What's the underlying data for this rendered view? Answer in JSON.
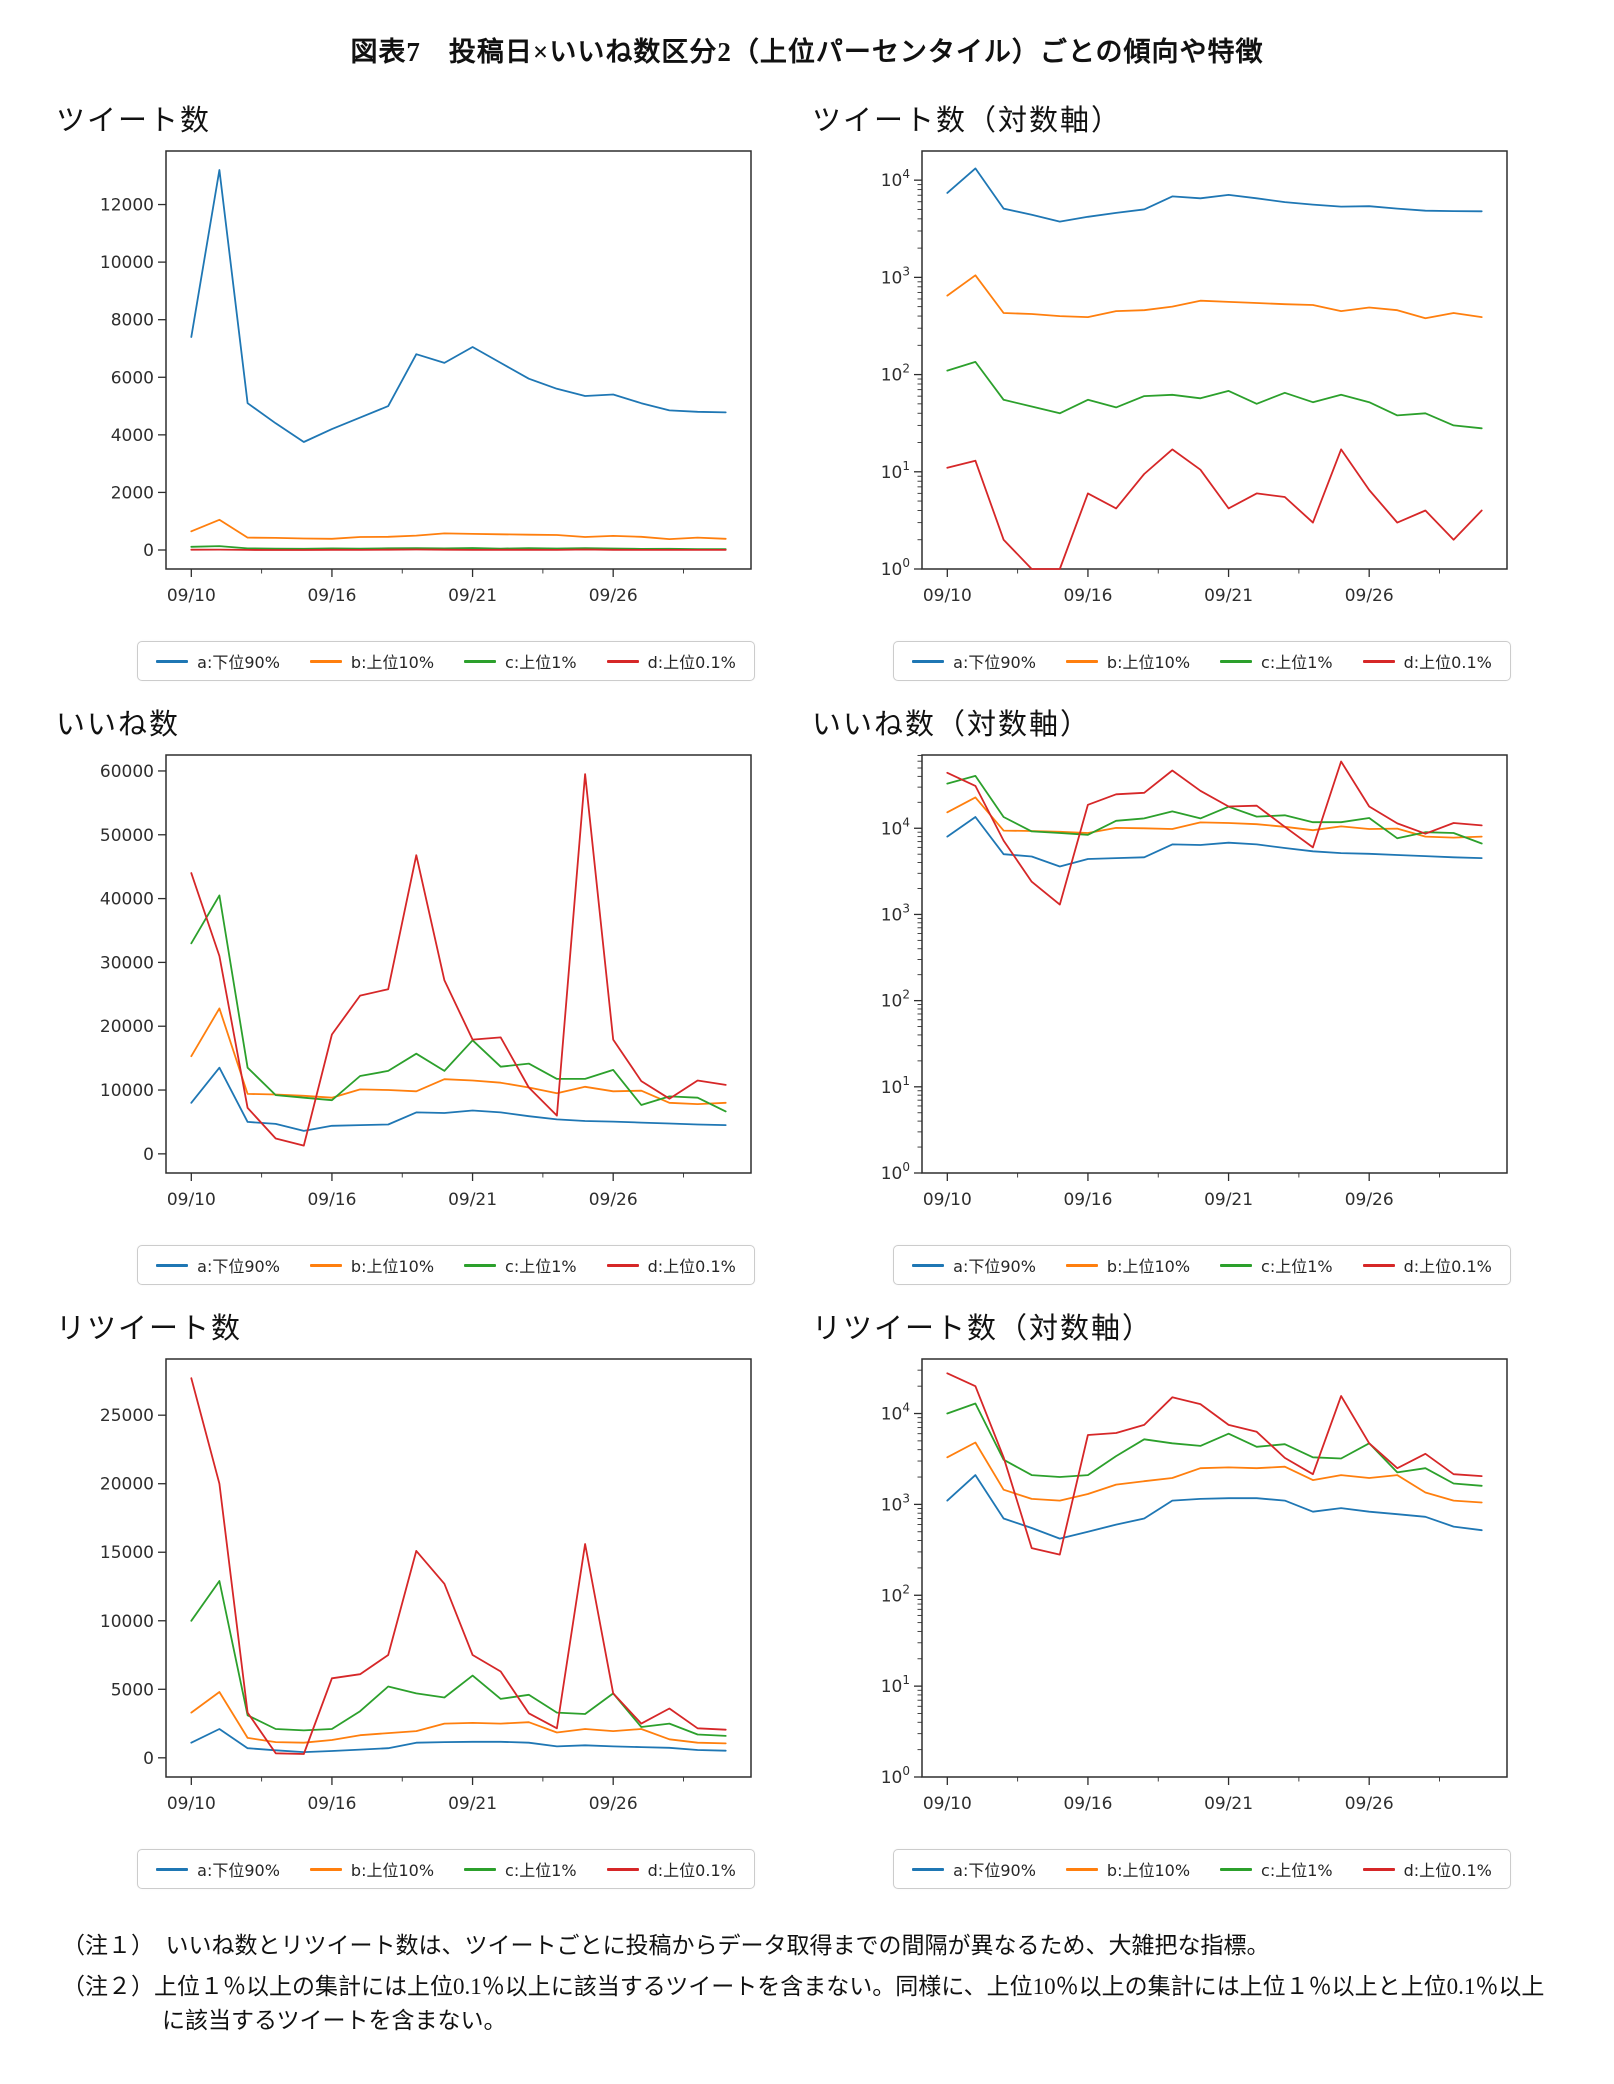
{
  "page": {
    "title": "図表7　投稿日×いいね数区分2（上位パーセンタイル）ごとの傾向や特徴",
    "notes": [
      "（注１）　いいね数とリツイート数は、ツイートごとに投稿からデータ取得までの間隔が異なるため、大雑把な指標。",
      "（注２）上位１％以上の集計には上位0.1％以上に該当するツイートを含まない。同様に、上位10％以上の集計には上位１％以上と上位0.1％以上に該当するツイートを含まない。"
    ]
  },
  "legend": {
    "position": "below",
    "items": [
      {
        "key": "a",
        "label": "a:下位90%",
        "color": "#1f77b4"
      },
      {
        "key": "b",
        "label": "b:上位10%",
        "color": "#ff7f0e"
      },
      {
        "key": "c",
        "label": "c:上位1%",
        "color": "#2ca02c"
      },
      {
        "key": "d",
        "label": "d:上位0.1%",
        "color": "#d62728"
      }
    ]
  },
  "x_axis": {
    "n_points": 20,
    "xlim": [
      -0.9,
      19.9
    ],
    "major_ticks": [
      {
        "index": 0,
        "label": "09/10"
      },
      {
        "index": 5,
        "label": "09/16"
      },
      {
        "index": 10,
        "label": "09/21"
      },
      {
        "index": 15,
        "label": "09/26"
      }
    ],
    "minor_tick_positions": [
      2.5,
      7.5,
      12.5,
      17.5
    ]
  },
  "chart_data": [
    {
      "id": "tweets-linear",
      "title": "ツイート数",
      "type": "line",
      "yscale": "linear",
      "grid": false,
      "ylim": [
        -660,
        13860
      ],
      "yticks": [
        0,
        2000,
        4000,
        6000,
        8000,
        10000,
        12000
      ],
      "series": [
        {
          "name": "a:下位90%",
          "values": [
            7400,
            13200,
            5100,
            4400,
            3750,
            4200,
            4600,
            5000,
            6800,
            6500,
            7050,
            6500,
            5950,
            5600,
            5350,
            5400,
            5100,
            4850,
            4800,
            4780
          ]
        },
        {
          "name": "b:上位10%",
          "values": [
            650,
            1050,
            430,
            420,
            400,
            390,
            450,
            460,
            500,
            575,
            560,
            545,
            530,
            520,
            450,
            490,
            460,
            380,
            430,
            390
          ]
        },
        {
          "name": "c:上位1%",
          "values": [
            110,
            135,
            55,
            47,
            40,
            55,
            46,
            60,
            62,
            57,
            68,
            50,
            65,
            52,
            62,
            52,
            38,
            40,
            30,
            28
          ]
        },
        {
          "name": "d:上位0.1%",
          "values": [
            11,
            13,
            2,
            1,
            1,
            6,
            4.2,
            9.5,
            17,
            10.5,
            4.2,
            6,
            5.5,
            3,
            17,
            6.5,
            3,
            4,
            2,
            4
          ]
        }
      ]
    },
    {
      "id": "tweets-log",
      "title": "ツイート数（対数軸）",
      "type": "line",
      "yscale": "log",
      "grid": false,
      "ylim_exponents": [
        0,
        4.3
      ],
      "ytick_exponents": [
        0,
        1,
        2,
        3,
        4
      ],
      "series": [
        {
          "name": "a:下位90%",
          "values": [
            7400,
            13200,
            5100,
            4400,
            3750,
            4200,
            4600,
            5000,
            6800,
            6500,
            7050,
            6500,
            5950,
            5600,
            5350,
            5400,
            5100,
            4850,
            4800,
            4780
          ]
        },
        {
          "name": "b:上位10%",
          "values": [
            650,
            1050,
            430,
            420,
            400,
            390,
            450,
            460,
            500,
            575,
            560,
            545,
            530,
            520,
            450,
            490,
            460,
            380,
            430,
            390
          ]
        },
        {
          "name": "c:上位1%",
          "values": [
            110,
            135,
            55,
            47,
            40,
            55,
            46,
            60,
            62,
            57,
            68,
            50,
            65,
            52,
            62,
            52,
            38,
            40,
            30,
            28
          ]
        },
        {
          "name": "d:上位0.1%",
          "values": [
            11,
            13,
            2,
            1,
            1,
            6,
            4.2,
            9.5,
            17,
            10.5,
            4.2,
            6,
            5.5,
            3,
            17,
            6.5,
            3,
            4,
            2,
            4
          ]
        }
      ]
    },
    {
      "id": "likes-linear",
      "title": "いいね数",
      "type": "line",
      "yscale": "linear",
      "grid": false,
      "ylim": [
        -3000,
        62500
      ],
      "yticks": [
        0,
        10000,
        20000,
        30000,
        40000,
        50000,
        60000
      ],
      "series": [
        {
          "name": "a:下位90%",
          "values": [
            8000,
            13500,
            5000,
            4700,
            3600,
            4400,
            4500,
            4600,
            6500,
            6400,
            6800,
            6500,
            5900,
            5400,
            5150,
            5050,
            4900,
            4750,
            4600,
            4500
          ]
        },
        {
          "name": "b:上位10%",
          "values": [
            15300,
            22800,
            9400,
            9300,
            9100,
            8800,
            10100,
            10000,
            9800,
            11700,
            11500,
            11150,
            10400,
            9500,
            10500,
            9800,
            9900,
            8000,
            7800,
            8000
          ]
        },
        {
          "name": "c:上位1%",
          "values": [
            33000,
            40500,
            13500,
            9200,
            8800,
            8400,
            12200,
            13000,
            15700,
            13000,
            17800,
            13650,
            14150,
            11750,
            11750,
            13150,
            7650,
            9000,
            8800,
            6650
          ]
        },
        {
          "name": "d:上位0.1%",
          "values": [
            44000,
            31000,
            7200,
            2400,
            1300,
            18700,
            24800,
            25800,
            46800,
            27200,
            17900,
            18250,
            10400,
            6000,
            59500,
            17900,
            11400,
            8650,
            11500,
            10800
          ]
        }
      ]
    },
    {
      "id": "likes-log",
      "title": "いいね数（対数軸）",
      "type": "line",
      "yscale": "log",
      "grid": false,
      "ylim_exponents": [
        0,
        4.85
      ],
      "ytick_exponents": [
        0,
        1,
        2,
        3,
        4
      ],
      "series": [
        {
          "name": "a:下位90%",
          "values": [
            8000,
            13500,
            5000,
            4700,
            3600,
            4400,
            4500,
            4600,
            6500,
            6400,
            6800,
            6500,
            5900,
            5400,
            5150,
            5050,
            4900,
            4750,
            4600,
            4500
          ]
        },
        {
          "name": "b:上位10%",
          "values": [
            15300,
            22800,
            9400,
            9300,
            9100,
            8800,
            10100,
            10000,
            9800,
            11700,
            11500,
            11150,
            10400,
            9500,
            10500,
            9800,
            9900,
            8000,
            7800,
            8000
          ]
        },
        {
          "name": "c:上位1%",
          "values": [
            33000,
            40500,
            13500,
            9200,
            8800,
            8400,
            12200,
            13000,
            15700,
            13000,
            17800,
            13650,
            14150,
            11750,
            11750,
            13150,
            7650,
            9000,
            8800,
            6650
          ]
        },
        {
          "name": "d:上位0.1%",
          "values": [
            44000,
            31000,
            7200,
            2400,
            1300,
            18700,
            24800,
            25800,
            46800,
            27200,
            17900,
            18250,
            10400,
            6000,
            59500,
            17900,
            11400,
            8650,
            11500,
            10800
          ]
        }
      ]
    },
    {
      "id": "retweets-linear",
      "title": "リツイート数",
      "type": "line",
      "yscale": "linear",
      "grid": false,
      "ylim": [
        -1400,
        29100
      ],
      "yticks": [
        0,
        5000,
        10000,
        15000,
        20000,
        25000
      ],
      "series": [
        {
          "name": "a:下位90%",
          "values": [
            1100,
            2100,
            700,
            550,
            420,
            500,
            600,
            700,
            1100,
            1150,
            1170,
            1170,
            1100,
            830,
            910,
            830,
            780,
            730,
            570,
            520
          ]
        },
        {
          "name": "b:上位10%",
          "values": [
            3300,
            4800,
            1450,
            1150,
            1100,
            1300,
            1650,
            1800,
            1950,
            2500,
            2550,
            2500,
            2600,
            1850,
            2100,
            1950,
            2100,
            1350,
            1100,
            1050
          ]
        },
        {
          "name": "c:上位1%",
          "values": [
            10000,
            12900,
            3100,
            2100,
            2000,
            2100,
            3400,
            5200,
            4700,
            4400,
            6000,
            4300,
            4600,
            3300,
            3200,
            4700,
            2250,
            2500,
            1700,
            1600
          ]
        },
        {
          "name": "d:上位0.1%",
          "values": [
            27700,
            20000,
            3300,
            330,
            280,
            5800,
            6100,
            7500,
            15100,
            12700,
            7500,
            6300,
            3250,
            2150,
            15600,
            4700,
            2500,
            3600,
            2150,
            2050
          ]
        }
      ]
    },
    {
      "id": "retweets-log",
      "title": "リツイート数（対数軸）",
      "type": "line",
      "yscale": "log",
      "grid": false,
      "ylim_exponents": [
        0,
        4.6
      ],
      "ytick_exponents": [
        0,
        1,
        2,
        3,
        4
      ],
      "series": [
        {
          "name": "a:下位90%",
          "values": [
            1100,
            2100,
            700,
            550,
            420,
            500,
            600,
            700,
            1100,
            1150,
            1170,
            1170,
            1100,
            830,
            910,
            830,
            780,
            730,
            570,
            520
          ]
        },
        {
          "name": "b:上位10%",
          "values": [
            3300,
            4800,
            1450,
            1150,
            1100,
            1300,
            1650,
            1800,
            1950,
            2500,
            2550,
            2500,
            2600,
            1850,
            2100,
            1950,
            2100,
            1350,
            1100,
            1050
          ]
        },
        {
          "name": "c:上位1%",
          "values": [
            10000,
            12900,
            3100,
            2100,
            2000,
            2100,
            3400,
            5200,
            4700,
            4400,
            6000,
            4300,
            4600,
            3300,
            3200,
            4700,
            2250,
            2500,
            1700,
            1600
          ]
        },
        {
          "name": "d:上位0.1%",
          "values": [
            27700,
            20000,
            3300,
            330,
            280,
            5800,
            6100,
            7500,
            15100,
            12700,
            7500,
            6300,
            3250,
            2150,
            15600,
            4700,
            2500,
            3600,
            2150,
            2050
          ]
        }
      ]
    }
  ]
}
